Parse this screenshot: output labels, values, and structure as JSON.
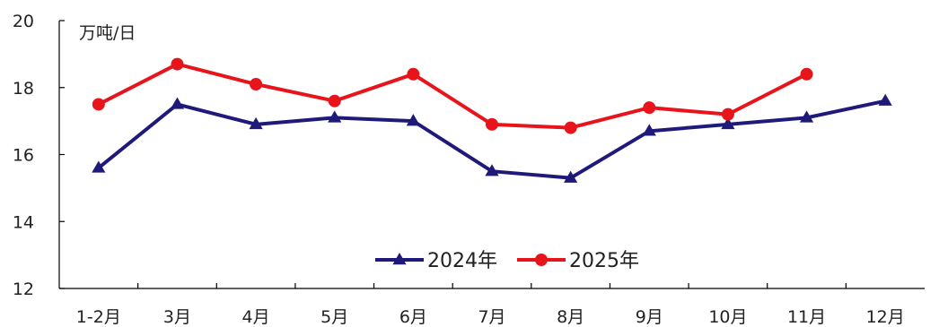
{
  "chart_data": {
    "type": "line",
    "title": "",
    "xlabel": "",
    "ylabel": "万吨/日",
    "ylim": [
      12,
      20
    ],
    "yticks": [
      "12",
      "14",
      "16",
      "18",
      "20"
    ],
    "categories": [
      "1-2月",
      "3月",
      "4月",
      "5月",
      "6月",
      "7月",
      "8月",
      "9月",
      "10月",
      "11月",
      "12月"
    ],
    "grid": false,
    "legend": "bottom-center",
    "series": [
      {
        "name": "2024年",
        "color": "#1F1A7A",
        "marker": "triangle",
        "values": [
          15.6,
          17.5,
          16.9,
          17.1,
          17.0,
          15.5,
          15.3,
          16.7,
          16.9,
          17.1,
          17.6
        ]
      },
      {
        "name": "2025年",
        "color": "#E8141B",
        "marker": "circle",
        "values": [
          17.5,
          18.7,
          18.1,
          17.6,
          18.4,
          16.9,
          16.8,
          17.4,
          17.2,
          18.4,
          null
        ]
      }
    ]
  }
}
